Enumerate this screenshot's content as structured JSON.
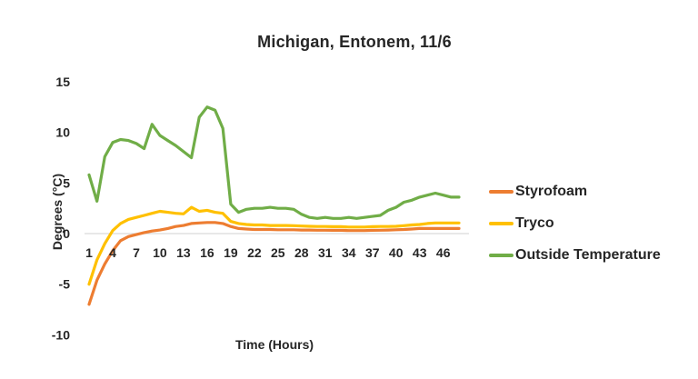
{
  "title": "Michigan, Entonem, 11/6",
  "axes": {
    "y_label": "Degrees (°C)",
    "x_label": "Time (Hours)"
  },
  "legend": [
    {
      "label": "Styrofoam",
      "color": "#ED7D31"
    },
    {
      "label": "Tryco",
      "color": "#FFC000"
    },
    {
      "label": "Outside Temperature",
      "color": "#70AD47"
    }
  ],
  "colors": {
    "background": "#FFFFFF",
    "text": "#262626",
    "zero_line": "#D9D9D9",
    "styrofoam": "#ED7D31",
    "tryco": "#FFC000",
    "outside": "#70AD47"
  },
  "chart_data": {
    "type": "line",
    "title": "Michigan, Entonem, 11/6",
    "xlabel": "Time (Hours)",
    "ylabel": "Degrees (°C)",
    "xlim": [
      1,
      48
    ],
    "ylim": [
      -10,
      15
    ],
    "x_ticks": [
      1,
      4,
      7,
      10,
      13,
      16,
      19,
      22,
      25,
      28,
      31,
      34,
      37,
      40,
      43,
      46
    ],
    "y_ticks": [
      15,
      10,
      5,
      0,
      -5,
      -10
    ],
    "grid": "zero-line-only",
    "legend_position": "right",
    "x": [
      1,
      2,
      3,
      4,
      5,
      6,
      7,
      8,
      9,
      10,
      11,
      12,
      13,
      14,
      15,
      16,
      17,
      18,
      19,
      20,
      21,
      22,
      23,
      24,
      25,
      26,
      27,
      28,
      29,
      30,
      31,
      32,
      33,
      34,
      35,
      36,
      37,
      38,
      39,
      40,
      41,
      42,
      43,
      44,
      45,
      46,
      47,
      48
    ],
    "series": [
      {
        "name": "Styrofoam",
        "color": "#ED7D31",
        "values": [
          -7.0,
          -4.6,
          -3.0,
          -1.7,
          -0.7,
          -0.3,
          -0.1,
          0.1,
          0.25,
          0.35,
          0.5,
          0.7,
          0.8,
          1.0,
          1.05,
          1.1,
          1.1,
          1.0,
          0.7,
          0.5,
          0.45,
          0.4,
          0.4,
          0.4,
          0.38,
          0.38,
          0.38,
          0.35,
          0.35,
          0.33,
          0.33,
          0.32,
          0.32,
          0.3,
          0.3,
          0.3,
          0.32,
          0.33,
          0.35,
          0.38,
          0.4,
          0.45,
          0.5,
          0.5,
          0.5,
          0.5,
          0.5,
          0.5
        ]
      },
      {
        "name": "Tryco",
        "color": "#FFC000",
        "values": [
          -5.0,
          -2.6,
          -1.0,
          0.3,
          1.0,
          1.4,
          1.6,
          1.8,
          2.0,
          2.2,
          2.1,
          2.0,
          1.95,
          2.6,
          2.2,
          2.3,
          2.1,
          2.0,
          1.2,
          1.0,
          0.9,
          0.85,
          0.85,
          0.8,
          0.8,
          0.8,
          0.78,
          0.75,
          0.72,
          0.7,
          0.7,
          0.68,
          0.68,
          0.65,
          0.65,
          0.65,
          0.68,
          0.7,
          0.7,
          0.72,
          0.78,
          0.85,
          0.9,
          1.0,
          1.05,
          1.05,
          1.05,
          1.05
        ]
      },
      {
        "name": "Outside Temperature",
        "color": "#70AD47",
        "values": [
          5.8,
          3.2,
          7.6,
          9.0,
          9.3,
          9.2,
          8.9,
          8.4,
          10.8,
          9.7,
          9.2,
          8.7,
          8.1,
          7.5,
          11.5,
          12.5,
          12.2,
          10.4,
          2.9,
          2.1,
          2.4,
          2.5,
          2.5,
          2.6,
          2.5,
          2.5,
          2.4,
          1.9,
          1.6,
          1.5,
          1.6,
          1.5,
          1.5,
          1.6,
          1.5,
          1.6,
          1.7,
          1.8,
          2.3,
          2.6,
          3.1,
          3.3,
          3.6,
          3.8,
          4.0,
          3.8,
          3.6,
          3.6
        ]
      }
    ]
  }
}
